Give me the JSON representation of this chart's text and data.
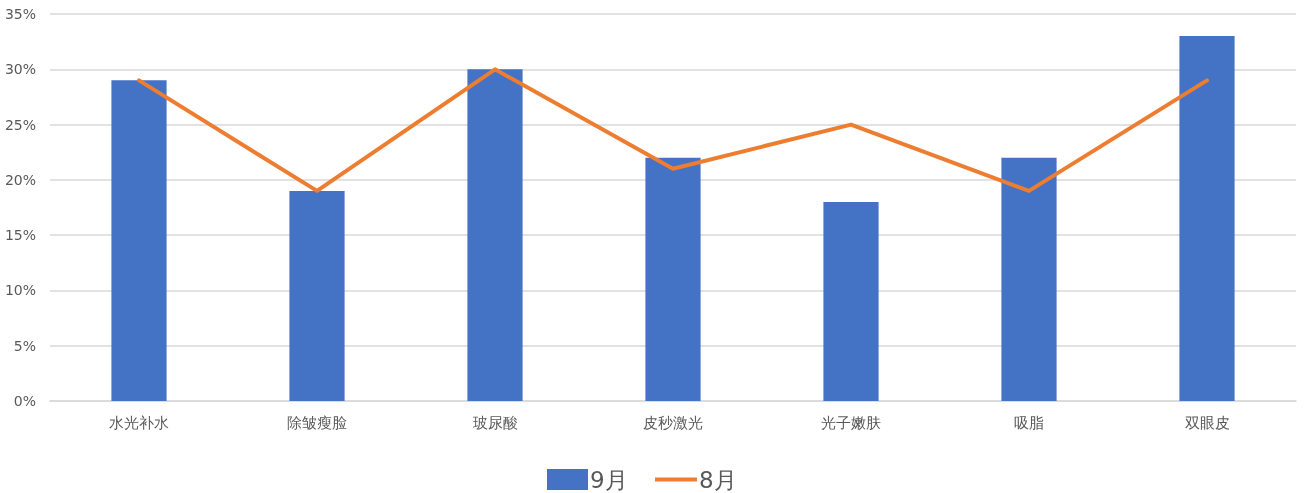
{
  "chart_data": {
    "type": "bar",
    "categories": [
      "水光补水",
      "除皱瘦脸",
      "玻尿酸",
      "皮秒激光",
      "光子嫩肤",
      "吸脂",
      "双眼皮"
    ],
    "series": [
      {
        "name": "9月",
        "color": "#4472c4",
        "values": [
          29,
          19,
          30,
          22,
          18,
          22,
          33
        ]
      },
      {
        "name": "8月",
        "type": "line",
        "color": "#ed7d31",
        "values": [
          29,
          19,
          30,
          21,
          25,
          19,
          29
        ]
      }
    ],
    "ylim": [
      0,
      35
    ],
    "yticks": [
      {
        "value": 0,
        "label": "0%"
      },
      {
        "value": 5,
        "label": "5%"
      },
      {
        "value": 10,
        "label": "10%"
      },
      {
        "value": 15,
        "label": "15%"
      },
      {
        "value": 20,
        "label": "20%"
      },
      {
        "value": 25,
        "label": "25%"
      },
      {
        "value": 30,
        "label": "30%"
      },
      {
        "value": 35,
        "label": "35%"
      }
    ],
    "grid": "y",
    "legend": "bottom",
    "marker": "none",
    "line_style": "solid"
  }
}
